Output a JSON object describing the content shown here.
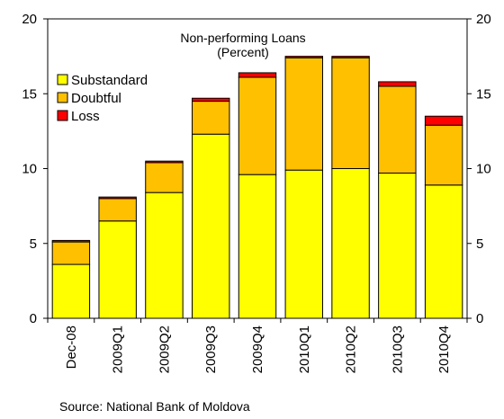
{
  "chart_data": {
    "type": "bar",
    "stacked": true,
    "title": "Non-performing Loans",
    "subtitle": "(Percent)",
    "categories": [
      "Dec-08",
      "2009Q1",
      "2009Q2",
      "2009Q3",
      "2009Q4",
      "2010Q1",
      "2010Q2",
      "2010Q3",
      "2010Q4"
    ],
    "series": [
      {
        "name": "Substandard",
        "color": "#ffff00",
        "values": [
          3.6,
          6.5,
          8.4,
          12.3,
          9.6,
          9.9,
          10.0,
          9.7,
          8.9
        ]
      },
      {
        "name": "Doubtful",
        "color": "#ffc000",
        "values": [
          1.5,
          1.5,
          2.0,
          2.2,
          6.5,
          7.5,
          7.4,
          5.8,
          4.0
        ]
      },
      {
        "name": "Loss",
        "color": "#ff0000",
        "values": [
          0.1,
          0.1,
          0.1,
          0.2,
          0.3,
          0.1,
          0.1,
          0.3,
          0.6
        ]
      }
    ],
    "ylim": [
      0,
      20
    ],
    "yticks": [
      "0",
      "5",
      "10",
      "15",
      "20"
    ],
    "right_axis_ticks": [
      "0",
      "5",
      "10",
      "15",
      "20"
    ],
    "legend_position": "top-left",
    "grid": false
  },
  "source": "Source: National Bank of Moldova"
}
